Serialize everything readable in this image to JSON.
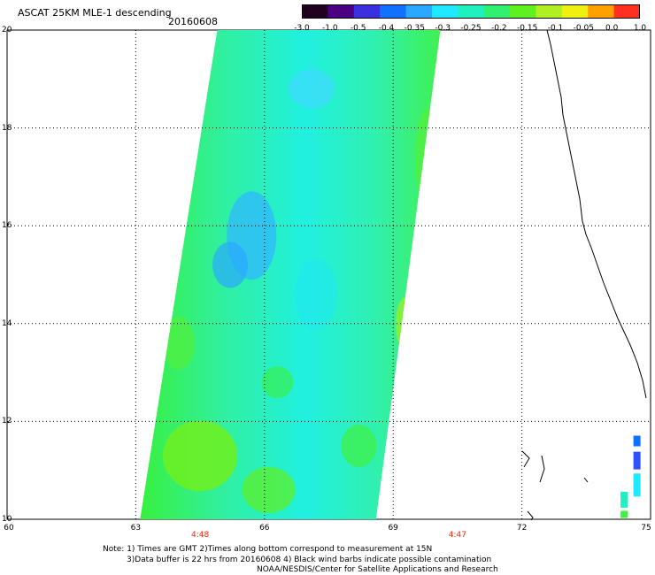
{
  "header": {
    "title": "ASCAT 25KM MLE-1 descending",
    "date": "20160608"
  },
  "colorbar": {
    "tick_labels": [
      "-3.0",
      "-1.0",
      "-0.5",
      "-0.4",
      "-0.35",
      "-0.3",
      "-0.25",
      "-0.2",
      "-0.15",
      "-0.1",
      "-0.05",
      "0.0",
      "1.0"
    ],
    "colors": [
      "#200020",
      "#4a0080",
      "#3a30e0",
      "#1070ff",
      "#2aa8ff",
      "#20e8ff",
      "#20f0c0",
      "#30f070",
      "#60f020",
      "#b0f020",
      "#f0f010",
      "#ffa000",
      "#ff3020"
    ]
  },
  "axes": {
    "lat_labels": [
      "20",
      "18",
      "16",
      "14",
      "12",
      "10"
    ],
    "lon_labels": [
      "60",
      "63",
      "66",
      "69",
      "72",
      "75"
    ],
    "time_labels": [
      "4:48",
      "4:47"
    ]
  },
  "map_data": {
    "lat_range": [
      10,
      20
    ],
    "lon_range": [
      60,
      75
    ],
    "swath_corners": {
      "north_west": [
        64.9,
        20
      ],
      "north_east": [
        70.1,
        20
      ],
      "south_east": [
        68.6,
        10
      ],
      "south_west": [
        63.1,
        10
      ]
    }
  },
  "footer": {
    "line1": "Note: 1) Times are GMT 2)Times along bottom correspond to measurement at 15N",
    "line2": "3)Data buffer is 22 hrs from 20160608 4) Black wind barbs indicate possible contamination",
    "line3": "NOAA/NESDIS/Center for Satellite Applications and Research"
  }
}
